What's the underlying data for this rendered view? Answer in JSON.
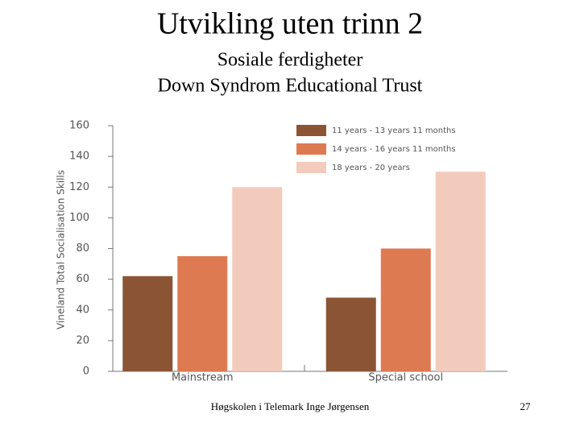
{
  "title": "Utvikling uten trinn 2",
  "subtitle": [
    "Sosiale ferdigheter",
    "Down Syndrom Educational Trust"
  ],
  "footer": "Høgskolen i Telemark Inge Jørgensen",
  "page_number": "27",
  "chart_data": {
    "type": "bar",
    "y_label": "Vineland Total Socialisation Skills",
    "categories": [
      "Mainstream",
      "Special school"
    ],
    "series": [
      {
        "name": "11 years - 13 years 11 months",
        "color": "#8b5535",
        "values": [
          62,
          48
        ]
      },
      {
        "name": "14 years - 16 years 11 months",
        "color": "#de7a52",
        "values": [
          75,
          80
        ]
      },
      {
        "name": "18 years - 20 years",
        "color": "#f3cbbd",
        "values": [
          120,
          130
        ]
      }
    ],
    "ylim": [
      0,
      160
    ],
    "yticks": [
      0,
      20,
      40,
      60,
      80,
      100,
      120,
      140,
      160
    ],
    "legend": "upper right"
  }
}
